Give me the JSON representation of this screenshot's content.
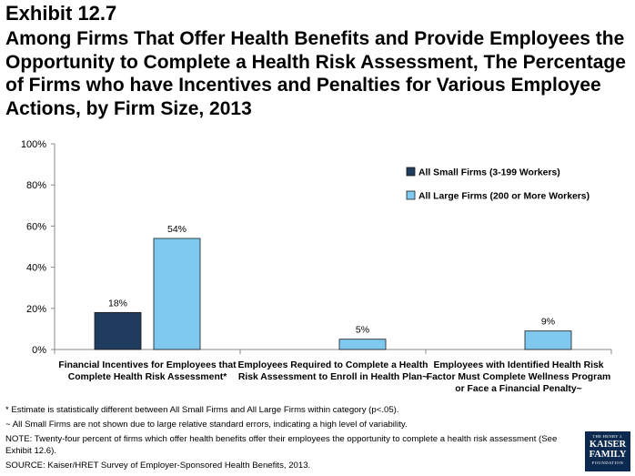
{
  "header": {
    "exhibit": "Exhibit 12.7",
    "title": "Among Firms That Offer Health Benefits and Provide Employees the Opportunity to Complete a Health Risk Assessment, The Percentage of Firms who have Incentives and Penalties for Various Employee Actions, by Firm Size, 2013"
  },
  "chart_data": {
    "type": "bar",
    "title": "",
    "xlabel": "",
    "ylabel": "",
    "ylim": [
      0,
      100
    ],
    "yticks": [
      "0%",
      "20%",
      "40%",
      "60%",
      "80%",
      "100%"
    ],
    "ytick_values": [
      0,
      20,
      40,
      60,
      80,
      100
    ],
    "grid": false,
    "legend_position": "top-right",
    "categories": [
      [
        "Financial Incentives for Employees that",
        "Complete Health Risk Assessment*"
      ],
      [
        "Employees Required to Complete a Health",
        "Risk Assessment to Enroll in Health Plan~"
      ],
      [
        "Employees with Identified Health Risk",
        "Factor Must Complete Wellness Program",
        "or Face a Financial Penalty~"
      ]
    ],
    "series": [
      {
        "name": "All Small Firms (3-199 Workers)",
        "color": "#1f3b5e",
        "values": [
          18,
          null,
          null
        ],
        "labels": [
          "18%",
          "",
          ""
        ]
      },
      {
        "name": "All Large Firms (200 or More Workers)",
        "color": "#7fc8ef",
        "values": [
          54,
          5,
          9
        ],
        "labels": [
          "54%",
          "5%",
          "9%"
        ]
      }
    ]
  },
  "notes": {
    "note1": "* Estimate is statistically different between All Small Firms and All Large Firms within category (p<.05).",
    "note2": "~ All Small Firms are not shown due to large relative standard errors, indicating a high level of variability.",
    "note3": "NOTE: Twenty-four percent of firms which offer health benefits offer their employees the opportunity to complete a health risk assessment (See Exhibit 12.6).",
    "source": "SOURCE: Kaiser/HRET Survey of Employer-Sponsored Health Benefits, 2013."
  },
  "logo": {
    "line1": "THE HENRY J.",
    "line2": "KAISER",
    "line3": "FAMILY",
    "line4": "FOUNDATION"
  }
}
